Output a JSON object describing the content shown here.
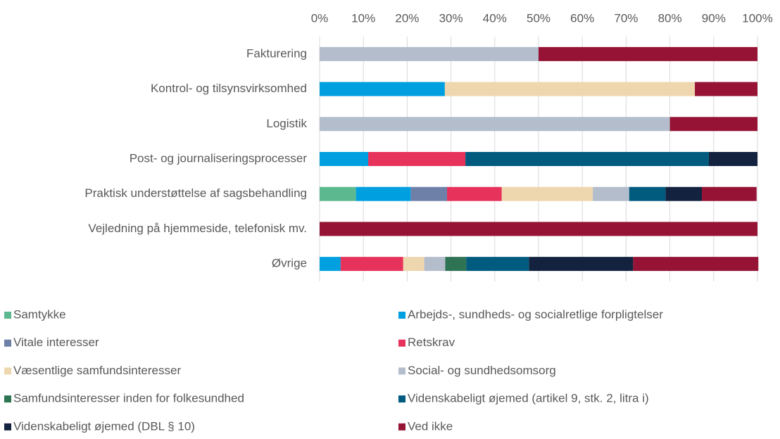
{
  "chart_data": {
    "type": "stacked_bar_horizontal",
    "categories": [
      "Fakturering",
      "Kontrol- og tilsynsvirksomhed",
      "Logistik",
      "Post- og journaliseringsprocesser",
      "Praktisk understøttelse af sagsbehandling",
      "Vejledning på hjemmeside, telefonisk mv.",
      "Øvrige"
    ],
    "series": [
      {
        "name": "Samtykke",
        "color": "#5cb88e",
        "values": [
          0,
          0,
          0,
          0,
          8.3,
          0,
          0
        ]
      },
      {
        "name": "Arbejds-, sundheds- og socialretlige forpligtelser",
        "color": "#00a0e0",
        "values": [
          0,
          28.6,
          0,
          11.1,
          12.5,
          0,
          4.8
        ]
      },
      {
        "name": "Vitale interesser",
        "color": "#6e80a8",
        "values": [
          0,
          0,
          0,
          0,
          8.3,
          0,
          0
        ]
      },
      {
        "name": "Retskrav",
        "color": "#e7335b",
        "values": [
          0,
          0,
          0,
          22.2,
          12.5,
          0,
          14.3
        ]
      },
      {
        "name": "Væsentlige samfundsinteresser",
        "color": "#eed7ae",
        "values": [
          0,
          57.1,
          0,
          0,
          20.8,
          0,
          4.8
        ]
      },
      {
        "name": "Social- og sundhedsomsorg",
        "color": "#b3bdcc",
        "values": [
          50,
          0,
          80,
          0,
          8.3,
          0,
          4.8
        ]
      },
      {
        "name": "Samfundsinteresser inden for folkesundhed",
        "color": "#2e7354",
        "values": [
          0,
          0,
          0,
          0,
          0,
          0,
          4.8
        ]
      },
      {
        "name": "Videnskabeligt øjemed (artikel 9, stk. 2, litra i)",
        "color": "#005b7f",
        "values": [
          0,
          0,
          0,
          55.6,
          8.3,
          0,
          14.3
        ]
      },
      {
        "name": "Videnskabeligt øjemed (DBL § 10)",
        "color": "#13233f",
        "values": [
          0,
          0,
          0,
          11.1,
          8.3,
          0,
          23.8
        ]
      },
      {
        "name": "Ved ikke",
        "color": "#961335",
        "values": [
          50,
          14.3,
          20,
          0,
          12.5,
          100,
          28.6
        ]
      }
    ],
    "xlim": [
      0,
      100
    ],
    "xticks": [
      {
        "value": 0,
        "label": "0%"
      },
      {
        "value": 10,
        "label": "10%"
      },
      {
        "value": 20,
        "label": "20%"
      },
      {
        "value": 30,
        "label": "30%"
      },
      {
        "value": 40,
        "label": "40%"
      },
      {
        "value": 50,
        "label": "50%"
      },
      {
        "value": 60,
        "label": "60%"
      },
      {
        "value": 70,
        "label": "70%"
      },
      {
        "value": 80,
        "label": "80%"
      },
      {
        "value": 90,
        "label": "90%"
      },
      {
        "value": 100,
        "label": "100%"
      }
    ],
    "grid": true,
    "legend": "bottom"
  }
}
